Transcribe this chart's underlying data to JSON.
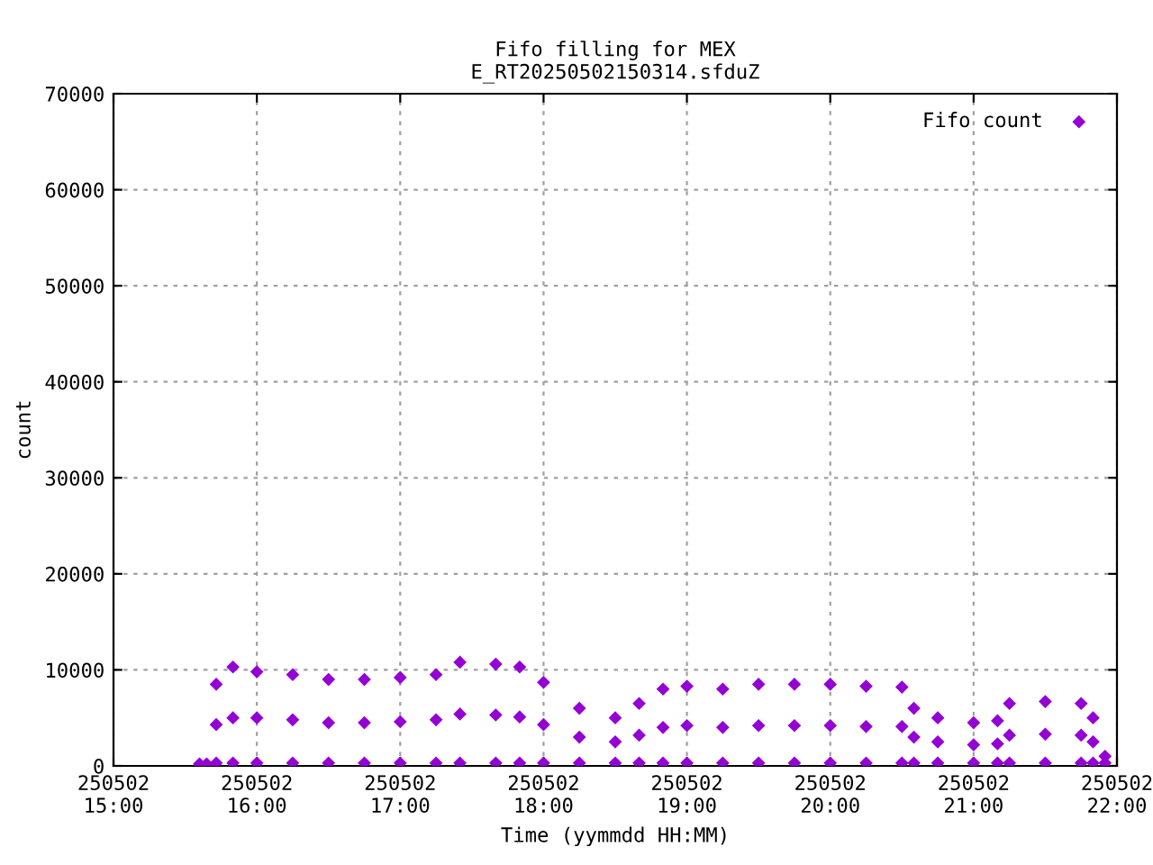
{
  "chart_data": {
    "type": "scatter",
    "title": "Fifo filling for MEX\nE_RT20250502150314.sfduZ",
    "xlabel": "Time (yymmdd HH:MM)",
    "ylabel": "count",
    "xlim": [
      "2025-05-02T15:00",
      "2025-05-02T22:00"
    ],
    "xticks": [
      {
        "value": "2025-05-02T15:00",
        "label": "250502\n15:00"
      },
      {
        "value": "2025-05-02T16:00",
        "label": "250502\n16:00"
      },
      {
        "value": "2025-05-02T17:00",
        "label": "250502\n17:00"
      },
      {
        "value": "2025-05-02T18:00",
        "label": "250502\n18:00"
      },
      {
        "value": "2025-05-02T19:00",
        "label": "250502\n19:00"
      },
      {
        "value": "2025-05-02T20:00",
        "label": "250502\n20:00"
      },
      {
        "value": "2025-05-02T21:00",
        "label": "250502\n21:00"
      },
      {
        "value": "2025-05-02T22:00",
        "label": "250502\n22:00"
      }
    ],
    "ylim": [
      0,
      70000
    ],
    "yticks": [
      0,
      10000,
      20000,
      30000,
      40000,
      50000,
      60000,
      70000
    ],
    "grid": true,
    "legend": "top right",
    "marker": "diamond",
    "series": [
      {
        "name": "Fifo count",
        "color": "#9400d3",
        "x": [
          "2025-05-02T15:36",
          "2025-05-02T15:39",
          "2025-05-02T15:43",
          "2025-05-02T15:50",
          "2025-05-02T16:00",
          "2025-05-02T16:15",
          "2025-05-02T16:30",
          "2025-05-02T16:45",
          "2025-05-02T17:00",
          "2025-05-02T17:15",
          "2025-05-02T17:25",
          "2025-05-02T17:40",
          "2025-05-02T17:50",
          "2025-05-02T18:00",
          "2025-05-02T18:15",
          "2025-05-02T18:30",
          "2025-05-02T18:40",
          "2025-05-02T18:50",
          "2025-05-02T19:00",
          "2025-05-02T19:15",
          "2025-05-02T19:30",
          "2025-05-02T19:45",
          "2025-05-02T20:00",
          "2025-05-02T20:15",
          "2025-05-02T20:30",
          "2025-05-02T20:35",
          "2025-05-02T20:45",
          "2025-05-02T21:00",
          "2025-05-02T21:10",
          "2025-05-02T21:15",
          "2025-05-02T21:30",
          "2025-05-02T21:45",
          "2025-05-02T21:50",
          "2025-05-02T21:55",
          "2025-05-02T15:43",
          "2025-05-02T15:50",
          "2025-05-02T16:00",
          "2025-05-02T16:15",
          "2025-05-02T16:30",
          "2025-05-02T16:45",
          "2025-05-02T17:00",
          "2025-05-02T17:15",
          "2025-05-02T17:25",
          "2025-05-02T17:40",
          "2025-05-02T17:50",
          "2025-05-02T18:00",
          "2025-05-02T18:15",
          "2025-05-02T18:30",
          "2025-05-02T18:40",
          "2025-05-02T18:50",
          "2025-05-02T19:00",
          "2025-05-02T19:15",
          "2025-05-02T19:30",
          "2025-05-02T19:45",
          "2025-05-02T20:00",
          "2025-05-02T20:15",
          "2025-05-02T20:30",
          "2025-05-02T20:35",
          "2025-05-02T20:45",
          "2025-05-02T21:00",
          "2025-05-02T21:10",
          "2025-05-02T21:15",
          "2025-05-02T21:30",
          "2025-05-02T21:45",
          "2025-05-02T21:50",
          "2025-05-02T21:55",
          "2025-05-02T15:43",
          "2025-05-02T15:50",
          "2025-05-02T16:00",
          "2025-05-02T16:15",
          "2025-05-02T16:30",
          "2025-05-02T16:45",
          "2025-05-02T17:00",
          "2025-05-02T17:15",
          "2025-05-02T17:25",
          "2025-05-02T17:40",
          "2025-05-02T17:50",
          "2025-05-02T18:00",
          "2025-05-02T18:15",
          "2025-05-02T18:30",
          "2025-05-02T18:40",
          "2025-05-02T18:50",
          "2025-05-02T19:00",
          "2025-05-02T19:15",
          "2025-05-02T19:30",
          "2025-05-02T19:45",
          "2025-05-02T20:00",
          "2025-05-02T20:15",
          "2025-05-02T20:30",
          "2025-05-02T20:35",
          "2025-05-02T20:45",
          "2025-05-02T21:00",
          "2025-05-02T21:10",
          "2025-05-02T21:15",
          "2025-05-02T21:30",
          "2025-05-02T21:45",
          "2025-05-02T21:50"
        ],
        "values": [
          200,
          200,
          300,
          300,
          300,
          300,
          300,
          300,
          300,
          300,
          300,
          300,
          300,
          300,
          300,
          300,
          300,
          300,
          300,
          300,
          300,
          300,
          300,
          300,
          300,
          300,
          300,
          300,
          300,
          300,
          300,
          300,
          300,
          300,
          8500,
          10300,
          9800,
          9500,
          9000,
          9000,
          9200,
          9500,
          10800,
          10600,
          10300,
          8700,
          6000,
          5000,
          6500,
          8000,
          8300,
          8000,
          8500,
          8500,
          8500,
          8300,
          8200,
          6000,
          5000,
          4500,
          4700,
          6500,
          6700,
          6500,
          5000,
          1000,
          4300,
          5000,
          5000,
          4800,
          4500,
          4500,
          4600,
          4800,
          5400,
          5300,
          5100,
          4300,
          3000,
          2500,
          3200,
          4000,
          4200,
          4000,
          4200,
          4200,
          4200,
          4100,
          4100,
          3000,
          2500,
          2200,
          2300,
          3200,
          3300,
          3200,
          2500
        ]
      }
    ]
  }
}
